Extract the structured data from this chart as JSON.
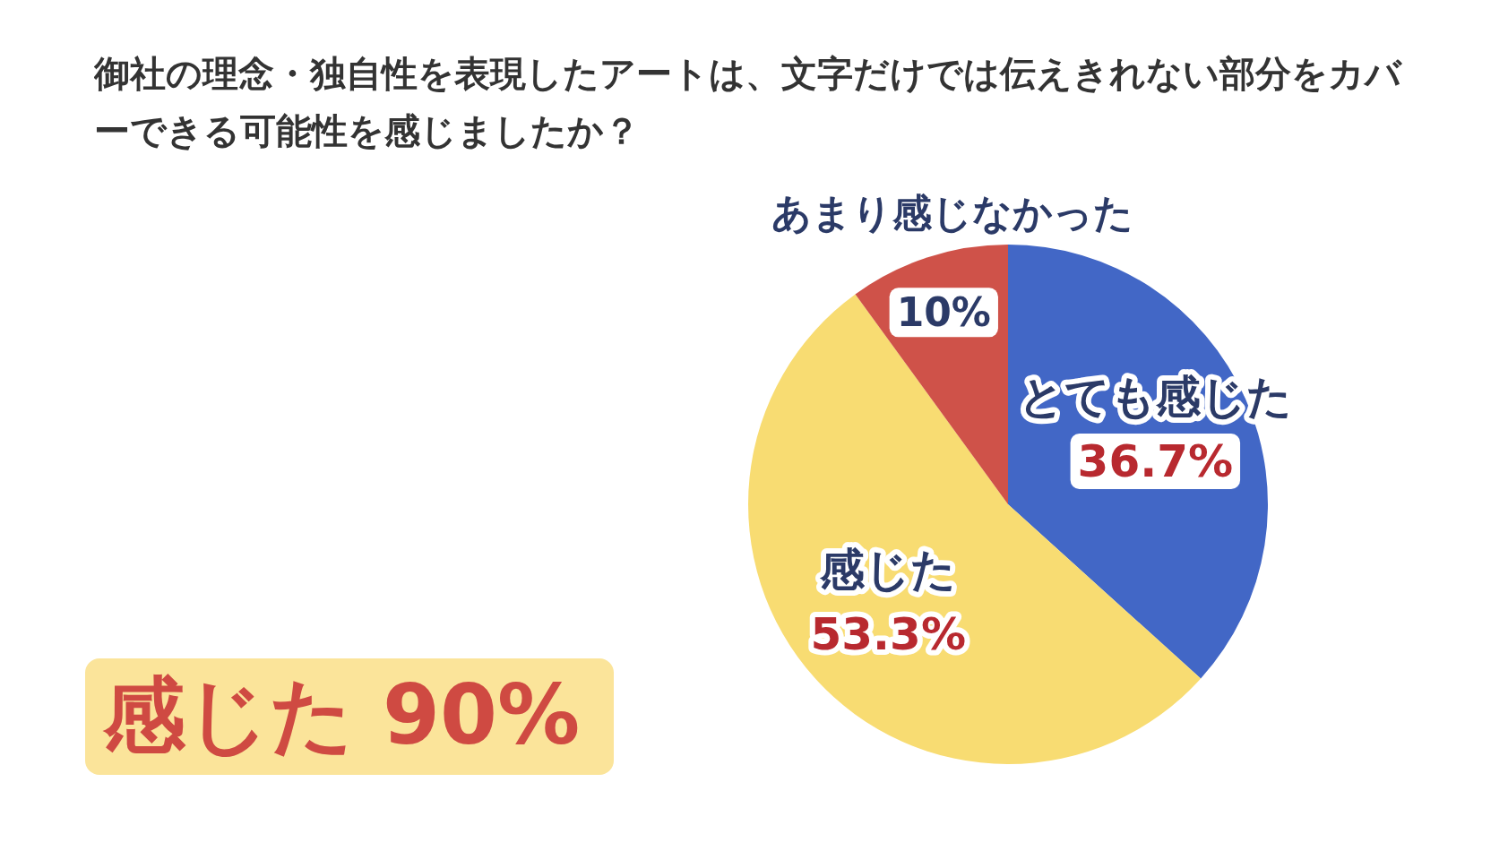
{
  "chart_data": {
    "type": "pie",
    "title": "御社の理念・独自性を表現したアートは、文字だけでは伝えきれない部分をカバーできる可能性を感じましたか？",
    "categories": [
      "とても感じた",
      "感じた",
      "あまり感じなかった"
    ],
    "values": [
      36.7,
      53.3,
      10
    ],
    "colors": [
      "#4267c6",
      "#f8dc72",
      "#cf5249"
    ],
    "value_labels": [
      "36.7%",
      "53.3%",
      "10%"
    ],
    "annotations": [
      "感じた 90%"
    ]
  }
}
